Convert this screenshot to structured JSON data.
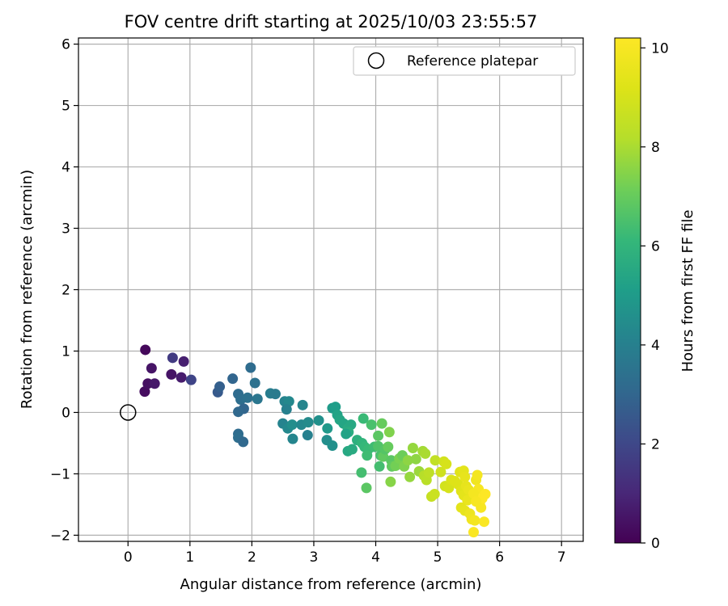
{
  "chart_data": {
    "type": "scatter",
    "title": "FOV centre drift starting at 2025/10/03 23:55:57",
    "xlabel": "Angular distance from reference (arcmin)",
    "ylabel": "Rotation from reference (arcmin)",
    "xlim": [
      -0.8,
      7.35
    ],
    "ylim": [
      -2.1,
      6.1
    ],
    "xticks": [
      0,
      1,
      2,
      3,
      4,
      5,
      6,
      7
    ],
    "yticks": [
      -2,
      -1,
      0,
      1,
      2,
      3,
      4,
      5,
      6
    ],
    "grid": true,
    "legend": {
      "position": "top-right",
      "label": "Reference platepar"
    },
    "reference_point": {
      "x": 0,
      "y": 0
    },
    "colorbar": {
      "label": "Hours from first FF file",
      "min": 0,
      "max": 10.2,
      "ticks": [
        0,
        2,
        4,
        6,
        8,
        10
      ],
      "colormap": "viridis"
    },
    "points": [
      [
        0.28,
        1.02,
        0.2
      ],
      [
        0.38,
        0.72,
        0.5
      ],
      [
        0.27,
        0.34,
        0.3
      ],
      [
        0.32,
        0.47,
        0.4
      ],
      [
        0.43,
        0.47,
        0.6
      ],
      [
        0.7,
        0.62,
        0.5
      ],
      [
        0.86,
        0.57,
        0.7
      ],
      [
        0.9,
        0.83,
        0.8
      ],
      [
        0.72,
        0.89,
        1.6
      ],
      [
        1.02,
        0.53,
        1.9
      ],
      [
        1.45,
        0.33,
        2.6
      ],
      [
        1.48,
        0.42,
        2.8
      ],
      [
        1.69,
        0.55,
        3.0
      ],
      [
        1.78,
        0.3,
        3.2
      ],
      [
        1.82,
        0.21,
        3.3
      ],
      [
        1.93,
        0.24,
        3.4
      ],
      [
        1.98,
        0.73,
        3.2
      ],
      [
        2.05,
        0.48,
        3.4
      ],
      [
        2.09,
        0.22,
        3.6
      ],
      [
        1.87,
        0.06,
        3.0
      ],
      [
        1.78,
        0.01,
        3.1
      ],
      [
        1.78,
        -0.35,
        3.2
      ],
      [
        1.78,
        -0.41,
        3.3
      ],
      [
        1.86,
        -0.48,
        3.1
      ],
      [
        2.3,
        0.31,
        3.9
      ],
      [
        2.38,
        0.3,
        3.8
      ],
      [
        2.53,
        0.18,
        4.1
      ],
      [
        2.6,
        0.18,
        4.3
      ],
      [
        2.56,
        0.05,
        4.0
      ],
      [
        2.82,
        0.12,
        4.2
      ],
      [
        2.5,
        -0.18,
        4.1
      ],
      [
        2.58,
        -0.26,
        4.3
      ],
      [
        2.65,
        -0.2,
        4.5
      ],
      [
        2.66,
        -0.43,
        4.2
      ],
      [
        2.8,
        -0.2,
        4.3
      ],
      [
        2.9,
        -0.37,
        4.0
      ],
      [
        2.91,
        -0.16,
        4.4
      ],
      [
        3.08,
        -0.13,
        4.6
      ],
      [
        3.3,
        0.07,
        5.0
      ],
      [
        3.35,
        0.09,
        5.1
      ],
      [
        3.38,
        -0.04,
        5.3
      ],
      [
        3.42,
        -0.12,
        5.4
      ],
      [
        3.22,
        -0.26,
        4.9
      ],
      [
        3.21,
        -0.45,
        4.5
      ],
      [
        3.3,
        -0.54,
        4.6
      ],
      [
        3.48,
        -0.18,
        5.4
      ],
      [
        3.55,
        -0.26,
        5.6
      ],
      [
        3.6,
        -0.2,
        5.5
      ],
      [
        3.56,
        -0.32,
        5.7
      ],
      [
        3.52,
        -0.35,
        5.3
      ],
      [
        3.55,
        -0.63,
        5.5
      ],
      [
        3.62,
        -0.6,
        5.6
      ],
      [
        3.7,
        -0.45,
        5.8
      ],
      [
        3.8,
        -0.1,
        6.2
      ],
      [
        3.78,
        -0.5,
        6.0
      ],
      [
        3.82,
        -0.56,
        6.1
      ],
      [
        3.88,
        -0.6,
        6.2
      ],
      [
        3.86,
        -0.7,
        6.3
      ],
      [
        3.77,
        -0.98,
        6.4
      ],
      [
        3.85,
        -1.23,
        6.8
      ],
      [
        3.93,
        -0.2,
        6.5
      ],
      [
        3.98,
        -0.56,
        6.3
      ],
      [
        4.04,
        -0.38,
        6.8
      ],
      [
        4.1,
        -0.18,
        7.0
      ],
      [
        4.04,
        -0.55,
        6.6
      ],
      [
        4.08,
        -0.7,
        6.5
      ],
      [
        4.06,
        -0.88,
        6.4
      ],
      [
        4.12,
        -0.72,
        6.9
      ],
      [
        4.15,
        -0.6,
        6.7
      ],
      [
        4.2,
        -0.56,
        7.0
      ],
      [
        4.25,
        -0.78,
        6.8
      ],
      [
        4.26,
        -0.88,
        6.9
      ],
      [
        4.22,
        -0.32,
        7.4
      ],
      [
        4.24,
        -1.13,
        7.5
      ],
      [
        4.32,
        -0.87,
        7.2
      ],
      [
        4.38,
        -0.75,
        7.3
      ],
      [
        4.43,
        -0.7,
        7.1
      ],
      [
        4.46,
        -0.88,
        7.4
      ],
      [
        4.52,
        -0.78,
        7.6
      ],
      [
        4.55,
        -1.05,
        7.7
      ],
      [
        4.6,
        -0.58,
        7.7
      ],
      [
        4.65,
        -0.76,
        7.6
      ],
      [
        4.7,
        -0.96,
        7.8
      ],
      [
        4.76,
        -0.63,
        7.9
      ],
      [
        4.8,
        -0.67,
        8.0
      ],
      [
        4.78,
        -1.03,
        8.2
      ],
      [
        4.82,
        -1.1,
        8.3
      ],
      [
        4.86,
        -0.98,
        8.4
      ],
      [
        4.9,
        -1.37,
        8.6
      ],
      [
        4.95,
        -1.33,
        8.7
      ],
      [
        4.96,
        -0.78,
        8.5
      ],
      [
        5.05,
        -0.97,
        8.8
      ],
      [
        5.1,
        -0.8,
        8.9
      ],
      [
        5.14,
        -0.84,
        9.0
      ],
      [
        5.12,
        -1.2,
        8.9
      ],
      [
        5.18,
        -1.23,
        9.0
      ],
      [
        5.22,
        -1.1,
        9.1
      ],
      [
        5.28,
        -1.12,
        9.2
      ],
      [
        5.33,
        -1.17,
        9.2
      ],
      [
        5.36,
        -0.97,
        9.3
      ],
      [
        5.42,
        -0.95,
        9.4
      ],
      [
        5.44,
        -1.05,
        9.5
      ],
      [
        5.38,
        -1.28,
        9.3
      ],
      [
        5.42,
        -1.35,
        9.4
      ],
      [
        5.46,
        -1.2,
        9.5
      ],
      [
        5.5,
        -1.26,
        9.6
      ],
      [
        5.48,
        -1.43,
        9.6
      ],
      [
        5.38,
        -1.55,
        9.4
      ],
      [
        5.44,
        -1.6,
        9.5
      ],
      [
        5.52,
        -1.65,
        9.7
      ],
      [
        5.55,
        -1.74,
        9.8
      ],
      [
        5.6,
        -1.76,
        9.9
      ],
      [
        5.58,
        -1.95,
        10.1
      ],
      [
        5.62,
        -1.1,
        9.8
      ],
      [
        5.64,
        -1.02,
        9.9
      ],
      [
        5.66,
        -1.25,
        10.0
      ],
      [
        5.68,
        -1.48,
        10.1
      ],
      [
        5.7,
        -1.55,
        10.0
      ],
      [
        5.72,
        -1.4,
        10.2
      ],
      [
        5.75,
        -1.78,
        10.1
      ],
      [
        5.77,
        -1.33,
        10.2
      ],
      [
        5.58,
        -1.32,
        9.9
      ],
      [
        5.62,
        -1.45,
        10.0
      ]
    ]
  }
}
